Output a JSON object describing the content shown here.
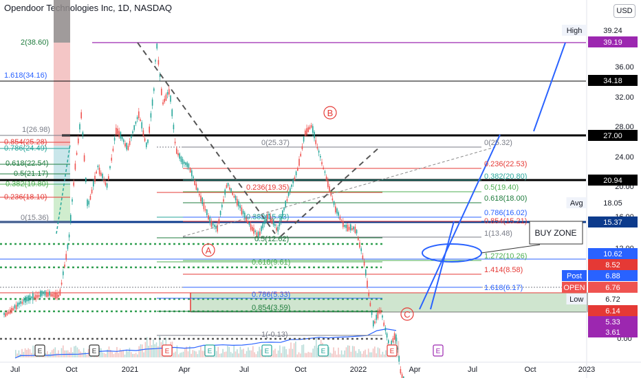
{
  "title": "Opendoor Technologies Inc, 1D, NASDAQ",
  "currency": "USD",
  "colors": {
    "up": "#26a69a",
    "down": "#ef5350",
    "fib_green": "#1e7b3c",
    "fib_red": "#e53935",
    "fib_blue": "#2962ff",
    "fib_gray": "#787b86",
    "purple": "#9c27b0",
    "navy": "#0d3b8c",
    "black": "#000000"
  },
  "chart_data": {
    "type": "candlestick",
    "scale": "log",
    "x_ticks": [
      "Jul",
      "Oct",
      "2021",
      "Apr",
      "Jul",
      "Oct",
      "2022",
      "Apr",
      "Jul",
      "Oct",
      "2023"
    ],
    "y_ticks": [
      "36.00",
      "32.00",
      "28.00",
      "24.00",
      "20.00",
      "16.00",
      "12.00",
      "0.00"
    ],
    "price_badges": [
      {
        "label": "High",
        "value": "39.24"
      },
      {
        "label": "",
        "value": "39.19"
      },
      {
        "label": "",
        "value": "34.18"
      },
      {
        "label": "",
        "value": "27.00"
      },
      {
        "label": "",
        "value": "20.94"
      },
      {
        "label": "Avg",
        "value": "18.05"
      },
      {
        "label": "",
        "value": "15.37"
      },
      {
        "label": "",
        "value": "10.62"
      },
      {
        "label": "",
        "value": "8.52"
      },
      {
        "label": "Post",
        "value": "6.88"
      },
      {
        "label": "OPEN",
        "value": "6.76"
      },
      {
        "label": "Low",
        "value": "6.72"
      },
      {
        "label": "",
        "value": "6.14"
      },
      {
        "label": "",
        "value": "5.33"
      },
      {
        "label": "",
        "value": "3.61"
      }
    ],
    "fib_left": [
      "2(38.60)",
      "1.618(34.16)",
      "1(26.98)",
      "0.854(25.28)",
      "0.786(24.49)",
      "0.618(22.54)",
      "0.5(21.17)",
      "0.382(19.80)",
      "0.236(18.10)",
      "0(15.36)"
    ],
    "fib_mid": [
      "0(25.37)",
      "0.236(19.35)",
      "0.382(15.63)",
      "0.5(12.62)",
      "0.618(9.61)",
      "0.786(5.33)",
      "0.854(3.59)",
      "1(-0.13)"
    ],
    "fib_right": [
      "0(25.32)",
      "0.236(22.53)",
      "0.382(20.80)",
      "0.5(19.40)",
      "0.618(18.00)",
      "0.786(16.02)",
      "0.854(15.21)",
      "1(13.48)",
      "1.272(10.26)",
      "1.414(8.58)",
      "1.618(6.17)"
    ],
    "annotations": {
      "wave_a": "A",
      "wave_b": "B",
      "wave_c": "C",
      "buy_zone": "BUY ZONE"
    },
    "event_markers": [
      "E",
      "E",
      "E",
      "E",
      "E",
      "E",
      "E",
      "E",
      "E"
    ],
    "price_path": [
      [
        "2020-06-15",
        9.5
      ],
      [
        "2020-07-15",
        10.2
      ],
      [
        "2020-08-15",
        10.6
      ],
      [
        "2020-09-10",
        10.5
      ],
      [
        "2020-09-25",
        14.0
      ],
      [
        "2020-10-05",
        20.5
      ],
      [
        "2020-10-15",
        27.0
      ],
      [
        "2020-10-25",
        16.5
      ],
      [
        "2020-11-10",
        20.5
      ],
      [
        "2020-11-25",
        18.5
      ],
      [
        "2020-12-10",
        25.0
      ],
      [
        "2020-12-28",
        22.5
      ],
      [
        "2021-01-15",
        27.0
      ],
      [
        "2021-01-28",
        22.5
      ],
      [
        "2021-02-08",
        30.5
      ],
      [
        "2021-02-12",
        39.2
      ],
      [
        "2021-02-22",
        28.5
      ],
      [
        "2021-03-05",
        30.5
      ],
      [
        "2021-03-15",
        22.5
      ],
      [
        "2021-03-25",
        21.0
      ],
      [
        "2021-04-05",
        20.5
      ],
      [
        "2021-04-20",
        18.0
      ],
      [
        "2021-05-10",
        15.3
      ],
      [
        "2021-05-20",
        14.8
      ],
      [
        "2021-06-05",
        18.8
      ],
      [
        "2021-06-20",
        17.2
      ],
      [
        "2021-07-10",
        15.2
      ],
      [
        "2021-07-25",
        14.3
      ],
      [
        "2021-08-10",
        16.0
      ],
      [
        "2021-08-25",
        14.7
      ],
      [
        "2021-09-10",
        17.5
      ],
      [
        "2021-09-25",
        20.0
      ],
      [
        "2021-10-08",
        24.5
      ],
      [
        "2021-10-18",
        25.4
      ],
      [
        "2021-10-28",
        22.5
      ],
      [
        "2021-11-10",
        19.5
      ],
      [
        "2021-11-25",
        16.5
      ],
      [
        "2021-12-10",
        15.0
      ],
      [
        "2021-12-28",
        14.8
      ],
      [
        "2022-01-10",
        12.5
      ],
      [
        "2022-01-25",
        9.0
      ],
      [
        "2022-02-05",
        9.8
      ],
      [
        "2022-02-20",
        8.0
      ],
      [
        "2022-03-01",
        8.6
      ],
      [
        "2022-03-10",
        7.0
      ],
      [
        "2022-03-15",
        6.76
      ]
    ]
  }
}
